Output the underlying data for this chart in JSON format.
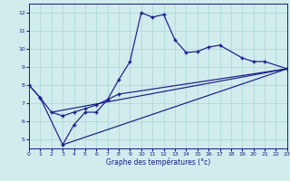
{
  "xlabel": "Graphe des températures (°c)",
  "background_color": "#d0ecec",
  "grid_color": "#a8d4d4",
  "line_color": "#1a1a8c",
  "xlim": [
    0,
    23
  ],
  "ylim": [
    4.5,
    12.5
  ],
  "xticks": [
    0,
    1,
    2,
    3,
    4,
    5,
    6,
    7,
    8,
    9,
    10,
    11,
    12,
    13,
    14,
    15,
    16,
    17,
    18,
    19,
    20,
    21,
    22,
    23
  ],
  "yticks": [
    5,
    6,
    7,
    8,
    9,
    10,
    11,
    12
  ],
  "curve1_x": [
    0,
    1,
    3,
    4,
    5,
    6,
    7,
    8,
    9,
    10,
    11,
    12,
    13,
    14,
    15,
    16,
    17,
    19,
    20,
    21,
    23
  ],
  "curve1_y": [
    8.0,
    7.3,
    4.7,
    5.8,
    6.5,
    6.5,
    7.2,
    8.3,
    9.3,
    12.0,
    11.75,
    11.9,
    10.5,
    9.8,
    9.85,
    10.1,
    10.2,
    9.5,
    9.3,
    9.3,
    8.9
  ],
  "curve2_x": [
    0,
    1,
    2,
    3,
    4,
    5,
    6,
    7,
    8,
    23
  ],
  "curve2_y": [
    8.0,
    7.3,
    6.5,
    6.3,
    6.5,
    6.7,
    6.9,
    7.2,
    7.5,
    8.9
  ],
  "line1_x": [
    2,
    23
  ],
  "line1_y": [
    6.5,
    8.9
  ],
  "line2_x": [
    3,
    23
  ],
  "line2_y": [
    4.7,
    8.9
  ]
}
